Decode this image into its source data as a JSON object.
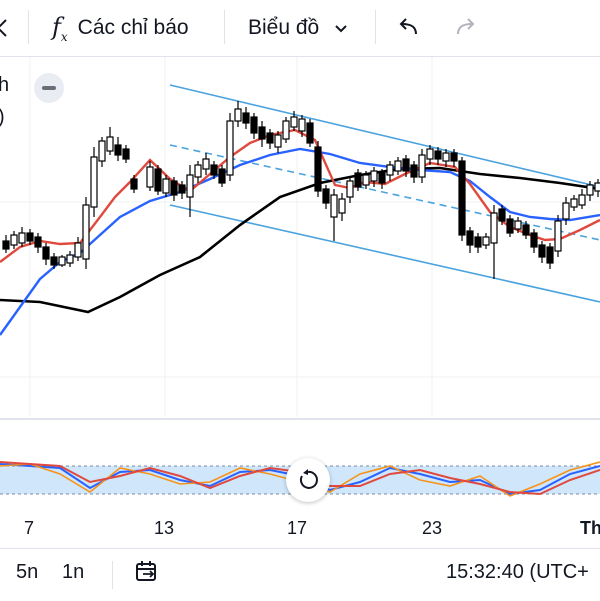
{
  "toolbar": {
    "indicators_label": "Các chỉ báo",
    "chart_type_label": "Biểu đồ",
    "undo": "undo-icon",
    "redo": "redo-icon"
  },
  "left_edge": {
    "interval_fragment": "h",
    "label_fragment": ")"
  },
  "time_axis": {
    "labels": [
      "7",
      "13",
      "17",
      "23",
      "Th"
    ]
  },
  "bottom": {
    "range_5d": "5n",
    "range_1m": "1n",
    "clock": "15:32:40 (UTC+"
  },
  "colors": {
    "bull": "#ffffff",
    "bear": "#000000",
    "channel": "#4aa3df",
    "ema_fast": "#e0493e",
    "ema_mid": "#2962ff",
    "ema_slow": "#000000",
    "osc_band": "#cfe6fb"
  }
}
